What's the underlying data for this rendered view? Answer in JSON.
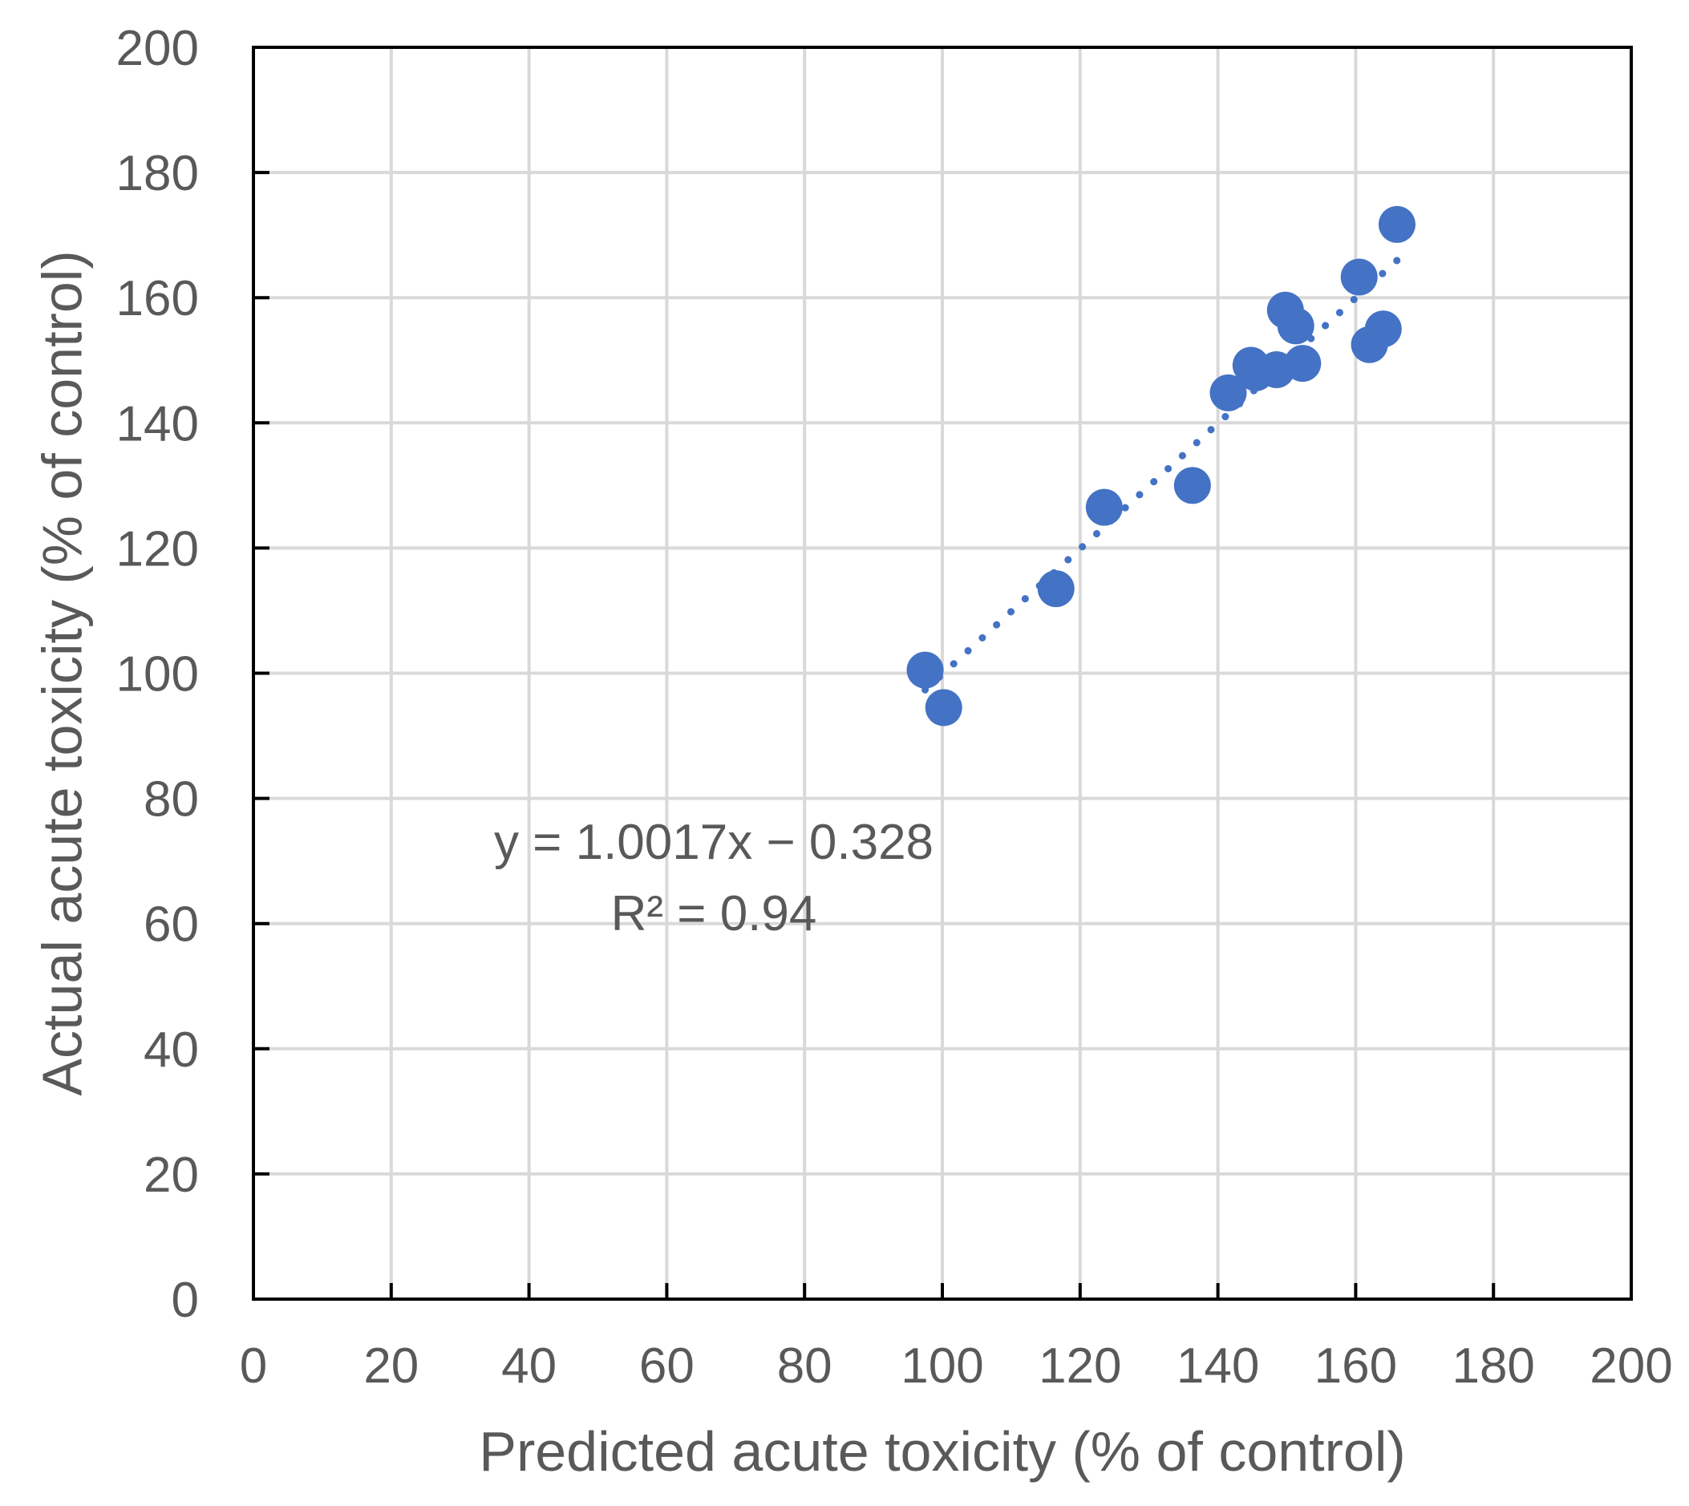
{
  "chart_data": {
    "type": "scatter",
    "title": "",
    "xlabel": "Predicted acute toxicity (% of control)",
    "ylabel": "Actual acute toxicity (% of control)",
    "xlim": [
      0,
      200
    ],
    "ylim": [
      0,
      200
    ],
    "x_ticks": [
      0,
      20,
      40,
      60,
      80,
      100,
      120,
      140,
      160,
      180,
      200
    ],
    "y_ticks": [
      0,
      20,
      40,
      60,
      80,
      100,
      120,
      140,
      160,
      180,
      200
    ],
    "x_tick_labels": [
      "0",
      "20",
      "40",
      "60",
      "80",
      "100",
      "120",
      "140",
      "160",
      "180",
      "200"
    ],
    "y_tick_labels": [
      "0",
      "20",
      "40",
      "60",
      "80",
      "100",
      "120",
      "140",
      "160",
      "180",
      "200"
    ],
    "grid": true,
    "legend": "none",
    "marker_color": "#4472C4",
    "series": [
      {
        "points": [
          {
            "x": 97.5,
            "y": 100.5
          },
          {
            "x": 100.2,
            "y": 94.5
          },
          {
            "x": 116.5,
            "y": 113.5
          },
          {
            "x": 123.5,
            "y": 126.5
          },
          {
            "x": 136.3,
            "y": 130.0
          },
          {
            "x": 141.5,
            "y": 144.8
          },
          {
            "x": 144.8,
            "y": 149.2
          },
          {
            "x": 145.5,
            "y": 148.0
          },
          {
            "x": 148.5,
            "y": 148.5
          },
          {
            "x": 149.8,
            "y": 158.0
          },
          {
            "x": 151.3,
            "y": 155.5
          },
          {
            "x": 152.3,
            "y": 149.5
          },
          {
            "x": 160.5,
            "y": 163.3
          },
          {
            "x": 162.0,
            "y": 152.5
          },
          {
            "x": 164.0,
            "y": 155.0
          },
          {
            "x": 166.0,
            "y": 171.7
          }
        ]
      }
    ],
    "trendline": {
      "style": "dotted",
      "slope": 1.0017,
      "intercept": -0.328,
      "x_range": [
        97.5,
        166.0
      ]
    },
    "annotations": {
      "equation": "y = 1.0017x − 0.328",
      "r_squared": "R² = 0.94"
    }
  }
}
